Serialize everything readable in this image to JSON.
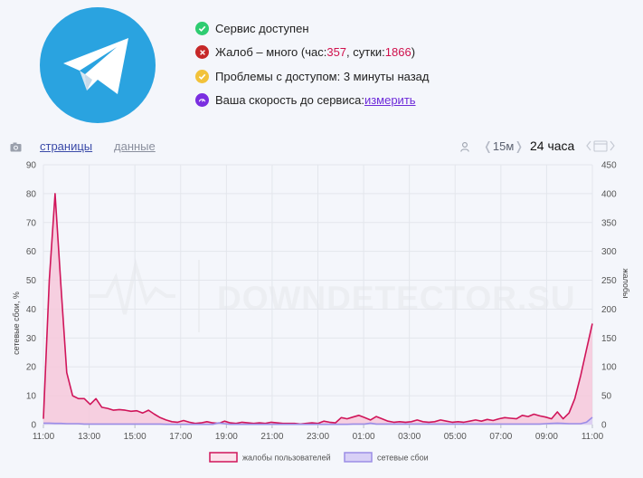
{
  "status": {
    "available": "Сервис доступен",
    "complaints_prefix": "Жалоб – много (час: ",
    "complaints_hour": "357",
    "complaints_mid": ", сутки: ",
    "complaints_day": "1866",
    "complaints_suffix": ")",
    "access_problems": "Проблемы с доступом: 3 минуты назад",
    "speed_label": "Ваша скорость до сервиса: ",
    "speed_link": "измерить"
  },
  "tabs": {
    "pages": "страницы",
    "data": "данные"
  },
  "range": {
    "open": "❬",
    "value": "15м",
    "close": "❭",
    "current": "24 часа"
  },
  "watermark": "DOWNDETECTOR.SU",
  "colors": {
    "complaints": "#d0155a",
    "complaints_fill": "#f6c8da",
    "outages": "#9b8de6",
    "outages_fill": "#d8d0f6",
    "telegram": "#2aa3e0",
    "ok": "#2ecc71",
    "error": "#c62828",
    "warning": "#f2c23a",
    "speed": "#7a2ee0"
  },
  "icons": [
    "telegram-logo",
    "check-icon",
    "x-icon",
    "check-icon",
    "speedometer-icon",
    "camera-icon",
    "user-icon",
    "calendar-icon"
  ],
  "chart_data": {
    "type": "area",
    "title": "",
    "x_tick_labels": [
      "11:00",
      "13:00",
      "15:00",
      "17:00",
      "19:00",
      "21:00",
      "23:00",
      "01:00",
      "03:00",
      "05:00",
      "07:00",
      "09:00",
      "11:00"
    ],
    "y_left": {
      "label": "сетевые сбои, %",
      "range": [
        0,
        90
      ],
      "ticks": [
        0,
        10,
        20,
        30,
        40,
        50,
        60,
        70,
        80,
        90
      ]
    },
    "y_right": {
      "label": "жалобы",
      "range": [
        0,
        450
      ],
      "ticks": [
        0,
        50,
        100,
        150,
        200,
        250,
        300,
        350,
        400,
        450
      ]
    },
    "grid": true,
    "legend_position": "bottom",
    "series": [
      {
        "name": "жалобы пользователей",
        "axis": "right",
        "values": [
          10,
          250,
          400,
          240,
          90,
          50,
          45,
          45,
          35,
          45,
          30,
          28,
          25,
          26,
          25,
          23,
          24,
          20,
          25,
          18,
          12,
          8,
          5,
          4,
          7,
          4,
          2,
          3,
          5,
          3,
          2,
          6,
          3,
          2,
          4,
          3,
          2,
          3,
          2,
          4,
          3,
          2,
          2,
          2,
          1,
          2,
          3,
          2,
          6,
          4,
          3,
          12,
          10,
          13,
          16,
          12,
          8,
          14,
          10,
          6,
          4,
          5,
          4,
          5,
          8,
          5,
          4,
          5,
          8,
          6,
          4,
          5,
          4,
          6,
          8,
          6,
          9,
          7,
          10,
          12,
          11,
          10,
          16,
          14,
          18,
          15,
          13,
          10,
          22,
          10,
          20,
          45,
          85,
          130,
          175
        ]
      },
      {
        "name": "сетевые сбои",
        "axis": "left",
        "values": [
          0.5,
          0.5,
          0.4,
          0.4,
          0.3,
          0.3,
          0.3,
          0.2,
          0.2,
          0.2,
          0.2,
          0.2,
          0.2,
          0.2,
          0.2,
          0.2,
          0.2,
          0.2,
          0.2,
          0.2,
          0.2,
          0.1,
          0.1,
          0.1,
          0.1,
          0.1,
          0.1,
          0.1,
          0.1,
          0.1,
          0.6,
          0.3,
          0.1,
          0.1,
          0.1,
          0.1,
          0.1,
          0.1,
          0.1,
          0.1,
          0.1,
          0.1,
          0.1,
          0.1,
          0.1,
          0.1,
          0.1,
          0.1,
          0.1,
          0.1,
          0.1,
          0.1,
          0.1,
          0.2,
          0.2,
          0.2,
          0.5,
          0.2,
          0.2,
          0.2,
          0.2,
          0.2,
          0.2,
          0.2,
          0.2,
          0.2,
          0.2,
          0.2,
          0.2,
          0.2,
          0.2,
          0.2,
          0.2,
          0.2,
          0.2,
          0.2,
          0.2,
          0.2,
          0.2,
          0.2,
          0.2,
          0.2,
          0.2,
          0.2,
          0.2,
          0.2,
          0.3,
          0.4,
          0.5,
          0.4,
          0.3,
          0.3,
          0.3,
          0.8,
          2.5
        ]
      }
    ]
  }
}
